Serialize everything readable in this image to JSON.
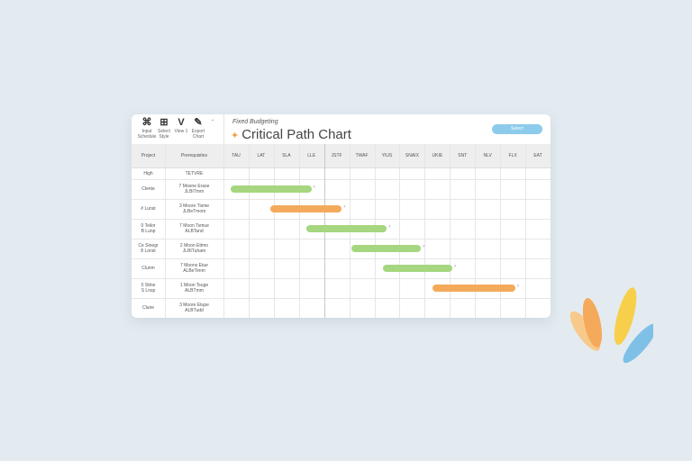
{
  "toolbar": {
    "tools": [
      {
        "icon": "grid-icon",
        "glyph": "⌘",
        "label": "Input Schedule"
      },
      {
        "icon": "chart-icon",
        "glyph": "⊞",
        "label": "Select Style"
      },
      {
        "icon": "check-icon",
        "glyph": "V",
        "label": "View 1"
      },
      {
        "icon": "edit-icon",
        "glyph": "✎",
        "label": "Export Chart"
      }
    ],
    "more": "⌄"
  },
  "header": {
    "subtitle": "Fixed Budgeting",
    "title": "Critical Path Chart",
    "action_label": "Select"
  },
  "table": {
    "col1_header": "Project",
    "col2_header": "Prerequisites",
    "timeline": [
      "TAU",
      "LAT",
      "SLA",
      "LLE",
      "JSTF",
      "TWAF",
      "YIUS",
      "SNAIX",
      "UKIE",
      "SNT",
      "NLV",
      "FLX",
      "EAT"
    ],
    "rows": [
      {
        "name": "High",
        "detail": "TETVRE"
      },
      {
        "name": "Clente",
        "detail": "7 Moone Erase\nJLBITmm"
      },
      {
        "name": "# Lunst",
        "detail": "3 Moore Tisme\nJLBeTmom"
      },
      {
        "name": "0 Teilor\nB Lunp",
        "detail": "7 Moon Tsmue\nALBTand"
      },
      {
        "name": "Ce Sinegr\n8 Lonst",
        "detail": "2 Moon Ettmo\nJLBITuham"
      },
      {
        "name": "Clunm",
        "detail": "7 Moons Etue\nALBeTimm"
      },
      {
        "name": "0 Sttne\nS Lnsp",
        "detail": "1 Moon Tsuge\nALBTmm"
      },
      {
        "name": "Clune",
        "detail": "3 Moore Etupe\nALBTudd"
      }
    ],
    "bars": [
      {
        "row": 1,
        "start": 0.3,
        "end": 3.5,
        "color": "#a6d67f"
      },
      {
        "row": 2,
        "start": 1.85,
        "end": 4.7,
        "color": "#f4aa5a"
      },
      {
        "row": 3,
        "start": 3.3,
        "end": 6.5,
        "color": "#a6d67f"
      },
      {
        "row": 4,
        "start": 5.1,
        "end": 7.85,
        "color": "#a6d67f"
      },
      {
        "row": 5,
        "start": 6.35,
        "end": 9.1,
        "color": "#a6d67f"
      },
      {
        "row": 6,
        "start": 8.3,
        "end": 11.6,
        "color": "#f4aa5a"
      }
    ]
  }
}
